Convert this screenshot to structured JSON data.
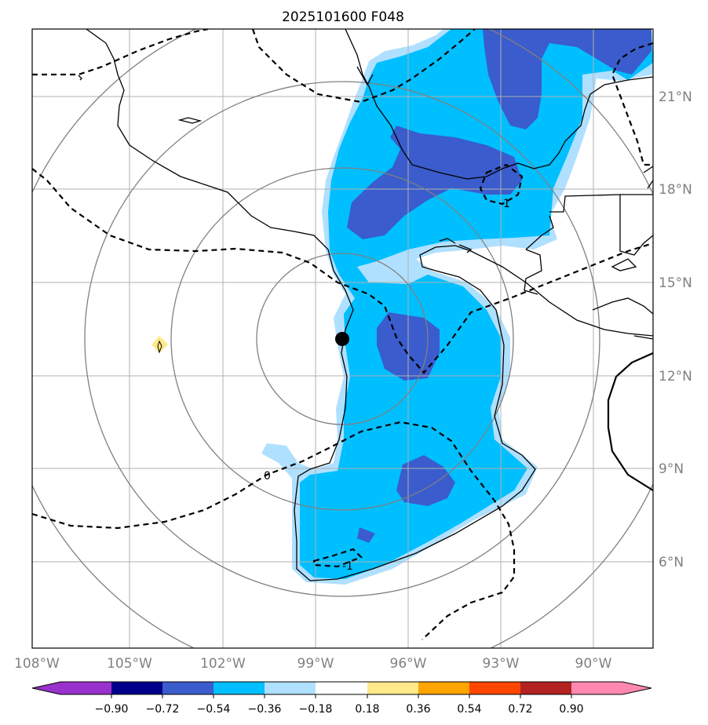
{
  "chart_data": {
    "type": "contour-map",
    "title": "2025101600 F048",
    "lon_ticks": [
      "108°W",
      "105°W",
      "102°W",
      "99°W",
      "96°W",
      "93°W",
      "90°W"
    ],
    "lat_ticks": [
      "21°N",
      "18°N",
      "15°N",
      "12°N",
      "9°N",
      "6°N"
    ],
    "lon_range": [
      -108,
      -88
    ],
    "lat_range": [
      3,
      23
    ],
    "center_marker": {
      "lon": -98.0,
      "lat": 13.2
    },
    "range_rings_deg": [
      2.7,
      5.5,
      8.3,
      11.1
    ],
    "shading_colors": {
      "lt_neg_090": "#9932cc",
      "neg_090_to_neg_072": "#00008b",
      "neg_072_to_neg_054": "#3a5ccc",
      "neg_054_to_neg_036": "#00bfff",
      "neg_036_to_neg_018": "#b0e0ff",
      "neg_018_to_018": "#ffffff",
      "p018_to_p036": "#ffe98a",
      "p036_to_p054": "#ffa500",
      "p054_to_p072": "#ff4500",
      "p072_to_p090": "#b22222",
      "gt_090": "#ff88b0"
    },
    "colorbar_levels": [
      "−0.90",
      "−0.72",
      "−0.54",
      "−0.36",
      "−0.18",
      "0.18",
      "0.36",
      "0.54",
      "0.72",
      "0.90"
    ],
    "contour_labels": [
      "-1",
      "0",
      "-1"
    ]
  }
}
